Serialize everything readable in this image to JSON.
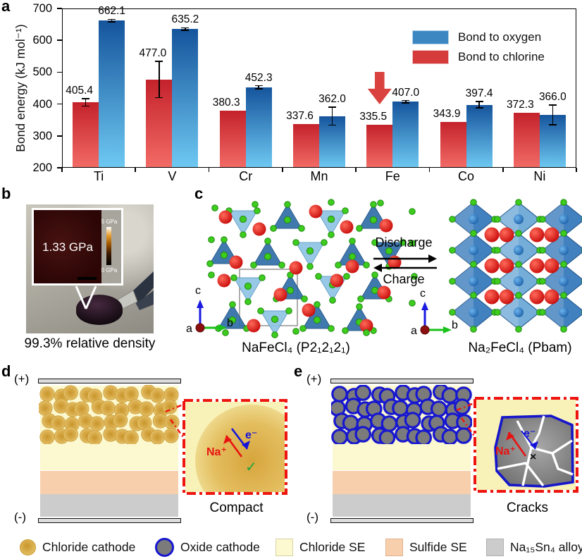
{
  "chart_data": {
    "type": "bar",
    "title": "",
    "ylabel": "Bond energy (kJ mol⁻¹)",
    "xlabel": "",
    "ylim": [
      200,
      700
    ],
    "yticks": [
      200,
      300,
      400,
      500,
      600,
      700
    ],
    "categories": [
      "Ti",
      "V",
      "Cr",
      "Mn",
      "Fe",
      "Co",
      "Ni"
    ],
    "series": [
      {
        "name": "Bond to oxygen",
        "position": "right",
        "color_top": "#15549c",
        "color_bottom": "#6ec9f2",
        "legend_color": "#3c87c2",
        "values": [
          662.1,
          635.2,
          452.3,
          362.0,
          407.0,
          397.4,
          366.0
        ],
        "errors": [
          4,
          4,
          5,
          28,
          4,
          10,
          31
        ]
      },
      {
        "name": "Bond to chlorine",
        "position": "left",
        "color_top": "#c4222b",
        "color_bottom": "#f26b66",
        "legend_color": "#d53b3b",
        "values": [
          405.4,
          477.0,
          380.3,
          337.6,
          335.5,
          343.9,
          372.3
        ],
        "errors": [
          12,
          57,
          0,
          0,
          0,
          0,
          0
        ]
      }
    ],
    "legend_position": "top-right",
    "grid": false,
    "annotation": {
      "type": "down-arrow",
      "category": "Fe",
      "series": "Bond to chlorine",
      "color": "#d9423e"
    }
  },
  "panel_a": {
    "label": "a"
  },
  "panel_b": {
    "label": "b",
    "inset_value": "1.33 GPa",
    "colorbar_top": "5 GPa",
    "colorbar_bottom": "0 GPa",
    "caption": "99.3% relative density"
  },
  "panel_c": {
    "label": "c",
    "discharge_label": "Discharge",
    "charge_label": "Charge",
    "left_caption": "NaFeCl₄ (P2₁2₁2₁)",
    "right_caption": "Na₂FeCl₄ (Pbam)",
    "axis_a": "a",
    "axis_b": "b",
    "axis_c": "c"
  },
  "panel_d": {
    "label": "d",
    "positive": "(+)",
    "negative": "(-)",
    "na_ion": "Na⁺",
    "electron": "e⁻",
    "check": "✓",
    "caption": "Compact"
  },
  "panel_e": {
    "label": "e",
    "positive": "(+)",
    "negative": "(-)",
    "na_ion": "Na⁺",
    "electron": "e⁻",
    "cross": "×",
    "caption": "Cracks"
  },
  "bottom_legend": {
    "items": [
      {
        "label": "Chloride cathode",
        "swatch": "chloride-cathode-circle"
      },
      {
        "label": "Oxide cathode",
        "swatch": "oxide-cathode-circle"
      },
      {
        "label": "Chloride SE",
        "swatch": "chloride-se-square"
      },
      {
        "label": "Sulfide SE",
        "swatch": "sulfide-se-square"
      },
      {
        "label": "Na₁₅Sn₄ alloy",
        "swatch": "alloy-square"
      }
    ]
  },
  "colors": {
    "chloride_cathode": "#d8a73c",
    "oxide_cathode_fill": "#7b7b7b",
    "oxide_cathode_ring": "#1717d0",
    "chloride_se": "#fcf8cf",
    "sulfide_se": "#f8cfac",
    "alloy": "#cccccc",
    "inset_border": "#ee1511",
    "crack": "#ffffff",
    "highlight_arrow": "#d9423e"
  }
}
